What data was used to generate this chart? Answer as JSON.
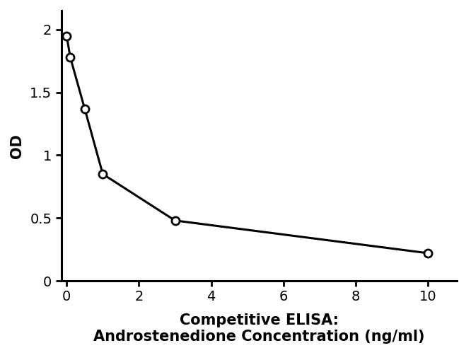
{
  "x": [
    0,
    0.1,
    0.5,
    1.0,
    3.0,
    10.0
  ],
  "y": [
    1.95,
    1.78,
    1.37,
    0.85,
    0.48,
    0.22
  ],
  "line_color": "#000000",
  "marker_style": "o",
  "marker_facecolor": "#ffffff",
  "marker_edgecolor": "#000000",
  "marker_size": 8,
  "line_width": 2.2,
  "xlim": [
    -0.15,
    10.8
  ],
  "ylim": [
    0,
    2.15
  ],
  "xticks": [
    0,
    2,
    4,
    6,
    8,
    10
  ],
  "yticks": [
    0,
    0.5,
    1.0,
    1.5,
    2.0
  ],
  "xlabel_line1": "Competitive ELISA:",
  "xlabel_line2": "Androstenedione Concentration (ng/ml)",
  "ylabel": "OD",
  "xlabel_fontsize": 15,
  "ylabel_fontsize": 15,
  "tick_fontsize": 14,
  "background_color": "#ffffff",
  "spine_linewidth": 2.2
}
